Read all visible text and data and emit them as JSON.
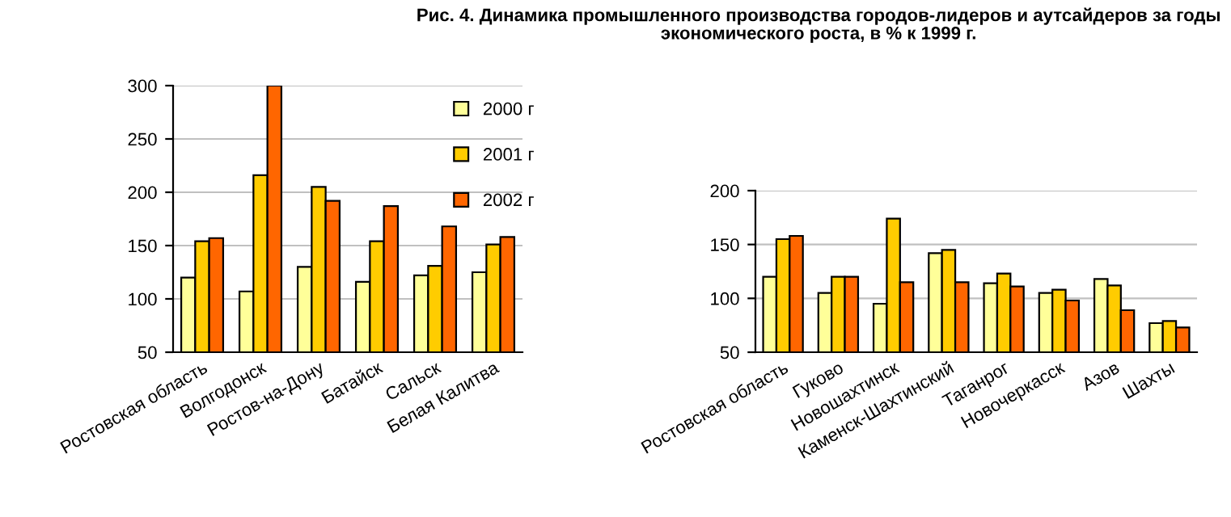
{
  "chart_data": [
    {
      "type": "bar",
      "title": "Рис. 4. Динамика промышленного производства городов-лидеров и аутсайдеров за годы\nэкономического роста, в % к 1999 г.",
      "categories": [
        "Ростовская область",
        "Волгодонск",
        "Ростов-на-Дону",
        "Батайск",
        "Сальск",
        "Белая Калитва"
      ],
      "series": [
        {
          "name": "2000 г",
          "color": "#ffff99",
          "values": [
            120,
            107,
            130,
            116,
            122,
            125
          ]
        },
        {
          "name": "2001 г",
          "color": "#ffcc00",
          "values": [
            154,
            216,
            205,
            154,
            131,
            151
          ]
        },
        {
          "name": "2002 г",
          "color": "#ff6600",
          "values": [
            157,
            300,
            192,
            187,
            168,
            158
          ]
        }
      ],
      "ylim": [
        50,
        300
      ],
      "yticks": [
        50,
        100,
        150,
        200,
        250,
        300
      ],
      "grid": "y",
      "legend": "top right"
    },
    {
      "type": "bar",
      "categories": [
        "Ростовская область",
        "Гуково",
        "Новошахтинск",
        "Каменск-Шахтинский",
        "Таганрог",
        "Новочеркасск",
        "Азов",
        "Шахты"
      ],
      "series": [
        {
          "color": "#ffff99",
          "values": [
            120,
            105,
            95,
            142,
            114,
            105,
            118,
            77
          ]
        },
        {
          "color": "#ffcc00",
          "values": [
            155,
            120,
            174,
            145,
            123,
            108,
            112,
            79
          ]
        },
        {
          "color": "#ff6600",
          "values": [
            158,
            120,
            115,
            115,
            111,
            98,
            89,
            73
          ]
        }
      ],
      "ylim": [
        50,
        200
      ],
      "yticks": [
        50,
        100,
        150,
        200
      ],
      "grid": "y"
    }
  ]
}
